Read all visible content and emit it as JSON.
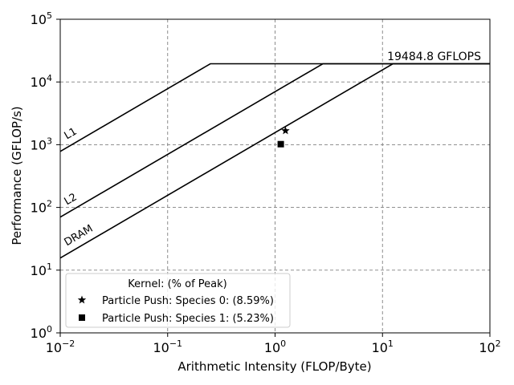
{
  "chart_data": {
    "type": "scatter",
    "subtype": "roofline",
    "xlabel": "Arithmetic Intensity (FLOP/Byte)",
    "ylabel": "Performance (GFLOP/s)",
    "xscale": "log",
    "yscale": "log",
    "xlim": [
      0.01,
      100
    ],
    "ylim": [
      1,
      100000
    ],
    "x_ticks": [
      0.01,
      0.1,
      1,
      10,
      100
    ],
    "y_ticks": [
      1,
      10,
      100,
      1000,
      10000,
      100000
    ],
    "grid": true,
    "peak_gflops": 19484.8,
    "peak_label": "19484.8 GFLOPS",
    "rooflines": [
      {
        "name": "L1",
        "bandwidth": 78000
      },
      {
        "name": "L2",
        "bandwidth": 7000
      },
      {
        "name": "DRAM",
        "bandwidth": 1560
      }
    ],
    "legend": {
      "title": "Kernel: (% of Peak)",
      "placement": "lower-left"
    },
    "series": [
      {
        "name": "Particle Push: Species 0: (8.59%)",
        "marker": "star",
        "x": 1.25,
        "y": 1670
      },
      {
        "name": "Particle Push: Species 1: (5.23%)",
        "marker": "square",
        "x": 1.13,
        "y": 1020
      }
    ]
  }
}
